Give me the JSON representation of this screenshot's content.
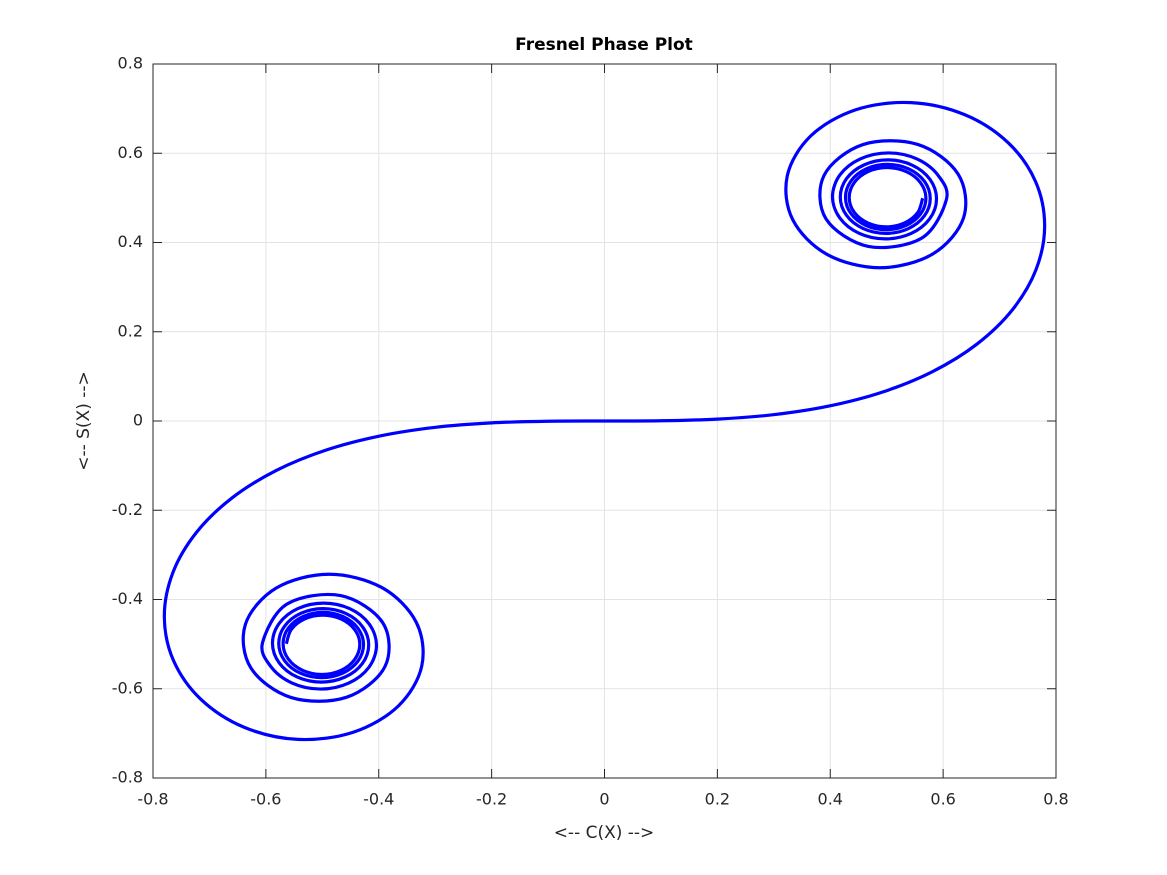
{
  "chart_data": {
    "type": "line",
    "title": "Fresnel Phase Plot",
    "x_label": "<-- C(X) -->",
    "y_label": "<-- S(X) -->",
    "color": "#0000ff",
    "grid": true,
    "xlim": [
      -0.8,
      0.8
    ],
    "ylim": [
      -0.8,
      0.8
    ],
    "xticks": [
      -0.8,
      -0.6,
      -0.4,
      -0.2,
      0,
      0.2,
      0.4,
      0.6,
      0.8
    ],
    "yticks": [
      -0.8,
      -0.6,
      -0.4,
      -0.2,
      0,
      0.2,
      0.4,
      0.6,
      0.8
    ],
    "x": [
      -0.5637,
      -0.5551,
      -0.5316,
      -0.4991,
      -0.4665,
      -0.4424,
      -0.4336,
      -0.4426,
      -0.4671,
      -0.501,
      -0.5351,
      -0.5602,
      -0.5695,
      -0.5601,
      -0.5343,
      -0.4989,
      -0.4631,
      -0.4367,
      -0.427,
      -0.4368,
      -0.4639,
      -0.5013,
      -0.5391,
      -0.5669,
      -0.5772,
      -0.5668,
      -0.5381,
      -0.4984,
      -0.4584,
      -0.4288,
      -0.4178,
      -0.4289,
      -0.4596,
      -0.5019,
      -0.5447,
      -0.5765,
      -0.5883,
      -0.5763,
      -0.5433,
      -0.4976,
      -0.4512,
      -0.4169,
      -0.404,
      -0.4171,
      -0.4531,
      -0.5032,
      -0.5541,
      -0.592,
      -0.6058,
      -0.5624,
      -0.4675,
      -0.3925,
      -0.3889,
      -0.4574,
      -0.555,
      -0.6266,
      -0.6363,
      -0.5816,
      -0.4882,
      -0.3944,
      -0.3336,
      -0.3238,
      -0.3655,
      -0.4453,
      -0.5431,
      -0.6386,
      -0.7154,
      -0.7638,
      -0.7799,
      -0.7648,
      -0.7228,
      -0.6597,
      -0.5811,
      -0.4923,
      -0.3975,
      -0.2994,
      -0.1999,
      -0.1,
      0,
      0.1,
      0.1999,
      0.2994,
      0.3975,
      0.4923,
      0.5811,
      0.6597,
      0.7228,
      0.7648,
      0.7799,
      0.7638,
      0.7154,
      0.6386,
      0.5431,
      0.4453,
      0.3655,
      0.3238,
      0.3336,
      0.3944,
      0.4882,
      0.5816,
      0.6363,
      0.6266,
      0.555,
      0.4574,
      0.3889,
      0.3925,
      0.4675,
      0.5624,
      0.6058,
      0.592,
      0.5541,
      0.5032,
      0.4531,
      0.4171,
      0.404,
      0.4169,
      0.4512,
      0.4976,
      0.5433,
      0.5763,
      0.5883,
      0.5765,
      0.5447,
      0.5019,
      0.4596,
      0.4289,
      0.4178,
      0.4288,
      0.4584,
      0.4984,
      0.5381,
      0.5668,
      0.5772,
      0.5669,
      0.5391,
      0.5013,
      0.4639,
      0.4368,
      0.427,
      0.4367,
      0.4631,
      0.4989,
      0.5343,
      0.5601,
      0.5695,
      0.5602,
      0.5351,
      0.501,
      0.4671,
      0.4426,
      0.4336,
      0.4424,
      0.4665,
      0.4991,
      0.5316,
      0.5551,
      0.5637
    ],
    "values": [
      -0.4992,
      -0.4673,
      -0.4437,
      -0.435,
      -0.4438,
      -0.4678,
      -0.5009,
      -0.5343,
      -0.5589,
      -0.5679,
      -0.5587,
      -0.5336,
      -0.499,
      -0.4641,
      -0.4383,
      -0.4288,
      -0.4384,
      -0.4648,
      -0.5012,
      -0.538,
      -0.565,
      -0.575,
      -0.5649,
      -0.537,
      -0.4986,
      -0.4597,
      -0.431,
      -0.4204,
      -0.4312,
      -0.4608,
      -0.5017,
      -0.5432,
      -0.5737,
      -0.5851,
      -0.5736,
      -0.5418,
      -0.4978,
      -0.4534,
      -0.4203,
      -0.4081,
      -0.4206,
      -0.455,
      -0.5028,
      -0.5513,
      -0.5872,
      -0.6007,
      -0.587,
      -0.549,
      -0.4963,
      -0.4101,
      -0.3913,
      -0.4529,
      -0.55,
      -0.6192,
      -0.6197,
      -0.5532,
      -0.4557,
      -0.3743,
      -0.3434,
      -0.3733,
      -0.4509,
      -0.5492,
      -0.6389,
      -0.6975,
      -0.7135,
      -0.6863,
      -0.6234,
      -0.5365,
      -0.4383,
      -0.3398,
      -0.2493,
      -0.1721,
      -0.1105,
      -0.0647,
      -0.0334,
      -0.0141,
      -0.0042,
      -0.0005,
      0,
      0.0005,
      0.0042,
      0.0141,
      0.0334,
      0.0647,
      0.1105,
      0.1721,
      0.2493,
      0.3398,
      0.4383,
      0.5365,
      0.6234,
      0.6863,
      0.7135,
      0.6975,
      0.6389,
      0.5492,
      0.4509,
      0.3733,
      0.3434,
      0.3743,
      0.4557,
      0.5532,
      0.6197,
      0.6192,
      0.55,
      0.4529,
      0.3913,
      0.4101,
      0.4963,
      0.549,
      0.587,
      0.6007,
      0.5872,
      0.5513,
      0.5028,
      0.455,
      0.4206,
      0.4081,
      0.4203,
      0.4534,
      0.4978,
      0.5418,
      0.5736,
      0.5851,
      0.5737,
      0.5432,
      0.5017,
      0.4608,
      0.4312,
      0.4204,
      0.431,
      0.4597,
      0.4986,
      0.537,
      0.5649,
      0.575,
      0.565,
      0.538,
      0.5012,
      0.4648,
      0.4384,
      0.4288,
      0.4383,
      0.4641,
      0.499,
      0.5336,
      0.5587,
      0.5679,
      0.5589,
      0.5343,
      0.5009,
      0.4678,
      0.4438,
      0.435,
      0.4437,
      0.4673,
      0.4992
    ]
  }
}
